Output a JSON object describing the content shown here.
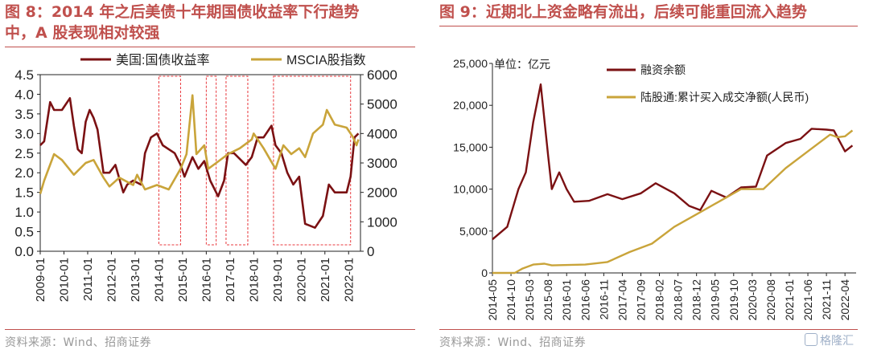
{
  "left_panel": {
    "title_line1": "图 8：2014 年之后美债十年期国债收益率下行趋势",
    "title_line2": "中，A 股表现相对较强",
    "source": "资料来源：Wind、招商证券"
  },
  "right_panel": {
    "title_line1": "图 9：近期北上资金略有流出，后续可能重回流入趋势",
    "source": "资料来源：Wind、招商证券"
  },
  "watermark": "格隆汇",
  "colors": {
    "accent": "#c0504d",
    "series_dark": "#7b1113",
    "series_gold": "#c9a43a",
    "highlight": "#e8383d"
  },
  "chart_data": [
    {
      "type": "line",
      "legend_position": "top",
      "grid": false,
      "x_tick_labels": [
        "2009-01",
        "2010-01",
        "2011-01",
        "2012-01",
        "2013-01",
        "2014-01",
        "2015-01",
        "2016-01",
        "2017-01",
        "2018-01",
        "2019-01",
        "2020-01",
        "2021-01",
        "2022-01"
      ],
      "y_left": {
        "ticks": [
          "0.0",
          "0.5",
          "1.0",
          "1.5",
          "2.0",
          "2.5",
          "3.0",
          "3.5",
          "4.0",
          "4.5"
        ],
        "range": [
          0,
          4.5
        ]
      },
      "y_right": {
        "ticks": [
          "0",
          "1000",
          "2000",
          "3000",
          "4000",
          "5000",
          "6000"
        ],
        "range": [
          0,
          6000
        ]
      },
      "highlight_periods": [
        [
          "2014-01",
          "2014-12"
        ],
        [
          "2016-01",
          "2016-06"
        ],
        [
          "2016-11",
          "2017-10"
        ],
        [
          "2018-11",
          "2022-02"
        ]
      ],
      "series": [
        {
          "name": "美国:国债收益率",
          "axis": "left",
          "color": "#7b1113",
          "points": [
            [
              "2009-01",
              2.7
            ],
            [
              "2009-03",
              2.8
            ],
            [
              "2009-06",
              3.8
            ],
            [
              "2009-08",
              3.6
            ],
            [
              "2009-12",
              3.6
            ],
            [
              "2010-04",
              3.9
            ],
            [
              "2010-06",
              3.2
            ],
            [
              "2010-08",
              2.6
            ],
            [
              "2010-10",
              2.5
            ],
            [
              "2010-12",
              3.3
            ],
            [
              "2011-02",
              3.6
            ],
            [
              "2011-04",
              3.4
            ],
            [
              "2011-06",
              3.1
            ],
            [
              "2011-09",
              2.0
            ],
            [
              "2011-12",
              2.0
            ],
            [
              "2012-03",
              2.2
            ],
            [
              "2012-07",
              1.5
            ],
            [
              "2012-09",
              1.7
            ],
            [
              "2012-12",
              1.8
            ],
            [
              "2013-04",
              1.7
            ],
            [
              "2013-06",
              2.5
            ],
            [
              "2013-09",
              2.9
            ],
            [
              "2013-12",
              3.0
            ],
            [
              "2014-03",
              2.7
            ],
            [
              "2014-06",
              2.6
            ],
            [
              "2014-09",
              2.5
            ],
            [
              "2014-12",
              2.2
            ],
            [
              "2015-02",
              1.9
            ],
            [
              "2015-06",
              2.4
            ],
            [
              "2015-09",
              2.1
            ],
            [
              "2015-12",
              2.3
            ],
            [
              "2016-03",
              1.8
            ],
            [
              "2016-07",
              1.4
            ],
            [
              "2016-10",
              1.8
            ],
            [
              "2016-12",
              2.5
            ],
            [
              "2017-03",
              2.5
            ],
            [
              "2017-09",
              2.2
            ],
            [
              "2017-12",
              2.4
            ],
            [
              "2018-03",
              2.9
            ],
            [
              "2018-06",
              2.9
            ],
            [
              "2018-10",
              3.2
            ],
            [
              "2018-12",
              2.7
            ],
            [
              "2019-03",
              2.5
            ],
            [
              "2019-06",
              2.0
            ],
            [
              "2019-09",
              1.7
            ],
            [
              "2019-12",
              1.9
            ],
            [
              "2020-03",
              0.7
            ],
            [
              "2020-08",
              0.6
            ],
            [
              "2020-12",
              0.9
            ],
            [
              "2021-03",
              1.7
            ],
            [
              "2021-06",
              1.5
            ],
            [
              "2021-09",
              1.5
            ],
            [
              "2021-12",
              1.5
            ],
            [
              "2022-02",
              1.9
            ],
            [
              "2022-04",
              2.9
            ],
            [
              "2022-06",
              3.0
            ]
          ]
        },
        {
          "name": "MSCIA股指数",
          "axis": "right",
          "color": "#c9a43a",
          "points": [
            [
              "2009-01",
              1950
            ],
            [
              "2009-03",
              2400
            ],
            [
              "2009-08",
              3300
            ],
            [
              "2009-12",
              3100
            ],
            [
              "2010-06",
              2600
            ],
            [
              "2010-12",
              3000
            ],
            [
              "2011-04",
              3100
            ],
            [
              "2011-09",
              2500
            ],
            [
              "2011-12",
              2200
            ],
            [
              "2012-05",
              2500
            ],
            [
              "2012-12",
              2250
            ],
            [
              "2013-02",
              2600
            ],
            [
              "2013-06",
              2100
            ],
            [
              "2013-12",
              2250
            ],
            [
              "2014-06",
              2100
            ],
            [
              "2014-12",
              2800
            ],
            [
              "2015-03",
              3300
            ],
            [
              "2015-06",
              5300
            ],
            [
              "2015-08",
              3300
            ],
            [
              "2015-12",
              3600
            ],
            [
              "2016-02",
              2800
            ],
            [
              "2016-06",
              3000
            ],
            [
              "2016-12",
              3300
            ],
            [
              "2017-06",
              3500
            ],
            [
              "2017-12",
              3800
            ],
            [
              "2018-01",
              4000
            ],
            [
              "2018-06",
              3500
            ],
            [
              "2018-12",
              2800
            ],
            [
              "2019-04",
              3600
            ],
            [
              "2019-08",
              3300
            ],
            [
              "2019-12",
              3500
            ],
            [
              "2020-03",
              3200
            ],
            [
              "2020-07",
              4000
            ],
            [
              "2020-12",
              4300
            ],
            [
              "2021-02",
              4800
            ],
            [
              "2021-06",
              4300
            ],
            [
              "2021-12",
              4200
            ],
            [
              "2022-03",
              3900
            ],
            [
              "2022-05",
              3600
            ],
            [
              "2022-06",
              3800
            ]
          ]
        }
      ]
    },
    {
      "type": "line",
      "legend_position": "top",
      "grid": false,
      "unit_label": "单位：亿元",
      "x_tick_labels": [
        "2014-05",
        "2014-10",
        "2015-03",
        "2015-08",
        "2016-01",
        "2016-06",
        "2016-11",
        "2017-04",
        "2017-09",
        "2018-02",
        "2018-07",
        "2018-12",
        "2019-05",
        "2019-10",
        "2020-03",
        "2020-08",
        "2021-01",
        "2021-06",
        "2021-11",
        "2022-04"
      ],
      "y": {
        "ticks": [
          "0",
          "5,000",
          "10,000",
          "15,000",
          "20,000",
          "25,000"
        ],
        "range": [
          0,
          25000
        ]
      },
      "series": [
        {
          "name": "融资余额",
          "color": "#7b1113",
          "points": [
            [
              "2014-05",
              4000
            ],
            [
              "2014-09",
              5500
            ],
            [
              "2014-12",
              10000
            ],
            [
              "2015-02",
              12000
            ],
            [
              "2015-04",
              18000
            ],
            [
              "2015-06",
              22500
            ],
            [
              "2015-08",
              14000
            ],
            [
              "2015-09",
              10000
            ],
            [
              "2015-11",
              12000
            ],
            [
              "2016-01",
              10000
            ],
            [
              "2016-03",
              8500
            ],
            [
              "2016-07",
              8600
            ],
            [
              "2016-12",
              9400
            ],
            [
              "2017-04",
              8800
            ],
            [
              "2017-09",
              9500
            ],
            [
              "2018-01",
              10700
            ],
            [
              "2018-06",
              9500
            ],
            [
              "2018-10",
              8000
            ],
            [
              "2019-01",
              7500
            ],
            [
              "2019-04",
              9800
            ],
            [
              "2019-08",
              9000
            ],
            [
              "2019-12",
              10200
            ],
            [
              "2020-04",
              10300
            ],
            [
              "2020-07",
              14000
            ],
            [
              "2020-12",
              15500
            ],
            [
              "2021-04",
              16000
            ],
            [
              "2021-07",
              17200
            ],
            [
              "2021-11",
              17100
            ],
            [
              "2022-01",
              17000
            ],
            [
              "2022-04",
              14500
            ],
            [
              "2022-06",
              15200
            ]
          ]
        },
        {
          "name": "陆股通:累计买入成交净额(人民币)",
          "color": "#c9a43a",
          "points": [
            [
              "2014-05",
              0
            ],
            [
              "2014-11",
              0
            ],
            [
              "2015-01",
              500
            ],
            [
              "2015-04",
              1000
            ],
            [
              "2015-07",
              1100
            ],
            [
              "2015-09",
              900
            ],
            [
              "2016-06",
              1000
            ],
            [
              "2016-12",
              1300
            ],
            [
              "2017-06",
              2500
            ],
            [
              "2017-12",
              3500
            ],
            [
              "2018-06",
              5500
            ],
            [
              "2018-12",
              7000
            ],
            [
              "2019-06",
              8500
            ],
            [
              "2019-12",
              10000
            ],
            [
              "2020-06",
              10000
            ],
            [
              "2020-12",
              12500
            ],
            [
              "2021-06",
              14500
            ],
            [
              "2021-12",
              16500
            ],
            [
              "2022-02",
              16200
            ],
            [
              "2022-04",
              16300
            ],
            [
              "2022-06",
              17000
            ]
          ]
        }
      ]
    }
  ]
}
